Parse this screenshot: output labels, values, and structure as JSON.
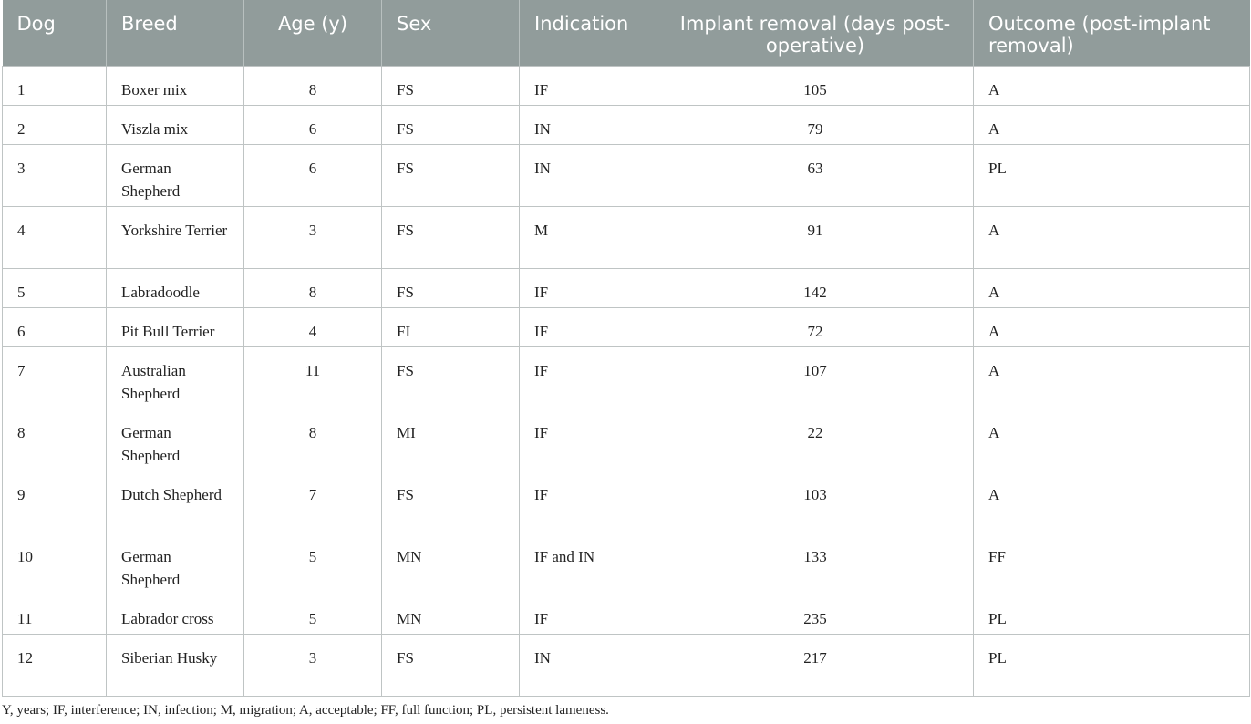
{
  "table": {
    "headers": [
      {
        "label": "Dog",
        "align": "left"
      },
      {
        "label": "Breed",
        "align": "left"
      },
      {
        "label": "Age (y)",
        "align": "center"
      },
      {
        "label": "Sex",
        "align": "left"
      },
      {
        "label": "Indication",
        "align": "left"
      },
      {
        "label": "Implant removal (days post-operative)",
        "align": "center"
      },
      {
        "label": "Outcome (post-implant removal)",
        "align": "left"
      }
    ],
    "rows": [
      {
        "dog": "1",
        "breed": "Boxer mix",
        "age": "8",
        "sex": "FS",
        "indication": "IF",
        "removal": "105",
        "outcome": "A"
      },
      {
        "dog": "2",
        "breed": "Viszla mix",
        "age": "6",
        "sex": "FS",
        "indication": "IN",
        "removal": "79",
        "outcome": "A"
      },
      {
        "dog": "3",
        "breed": "German Shepherd",
        "age": "6",
        "sex": "FS",
        "indication": "IN",
        "removal": "63",
        "outcome": "PL"
      },
      {
        "dog": "4",
        "breed": "Yorkshire Terrier",
        "age": "3",
        "sex": "FS",
        "indication": "M",
        "removal": "91",
        "outcome": "A"
      },
      {
        "dog": "5",
        "breed": "Labradoodle",
        "age": "8",
        "sex": "FS",
        "indication": "IF",
        "removal": "142",
        "outcome": "A"
      },
      {
        "dog": "6",
        "breed": "Pit Bull Terrier",
        "age": "4",
        "sex": "FI",
        "indication": "IF",
        "removal": "72",
        "outcome": "A"
      },
      {
        "dog": "7",
        "breed": "Australian Shepherd",
        "age": "11",
        "sex": "FS",
        "indication": "IF",
        "removal": "107",
        "outcome": "A"
      },
      {
        "dog": "8",
        "breed": "German Shepherd",
        "age": "8",
        "sex": "MI",
        "indication": "IF",
        "removal": "22",
        "outcome": "A"
      },
      {
        "dog": "9",
        "breed": "Dutch Shepherd",
        "age": "7",
        "sex": "FS",
        "indication": "IF",
        "removal": "103",
        "outcome": "A"
      },
      {
        "dog": "10",
        "breed": "German Shepherd",
        "age": "5",
        "sex": "MN",
        "indication": "IF and IN",
        "removal": "133",
        "outcome": "FF"
      },
      {
        "dog": "11",
        "breed": "Labrador cross",
        "age": "5",
        "sex": "MN",
        "indication": "IF",
        "removal": "235",
        "outcome": "PL"
      },
      {
        "dog": "12",
        "breed": "Siberian Husky",
        "age": "3",
        "sex": "FS",
        "indication": "IN",
        "removal": "217",
        "outcome": "PL"
      }
    ]
  },
  "footnote": "Y, years; IF, interference; IN, infection; M, migration; A, acceptable; FF, full function; PL, persistent lameness.",
  "colors": {
    "header_bg": "#919c9b",
    "header_text": "#ffffff",
    "border": "#bfc4c4"
  }
}
